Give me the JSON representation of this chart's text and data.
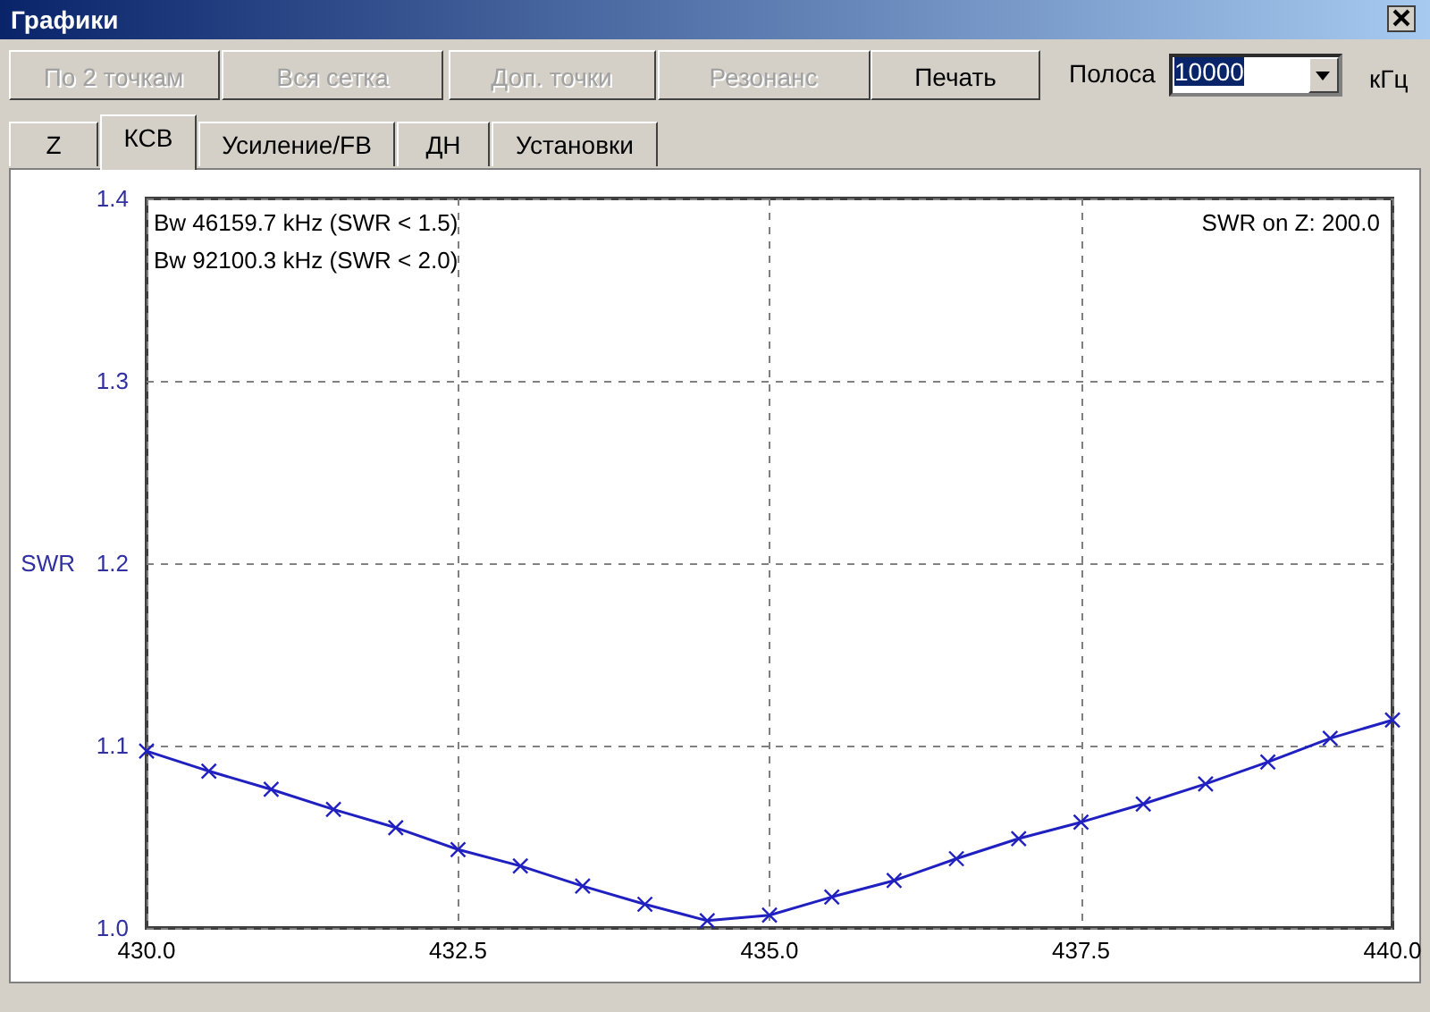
{
  "chart_data": {
    "type": "line",
    "title": "Графики",
    "ylabel": "SWR",
    "annotations": [
      "Bw 46159.7 kHz (SWR < 1.5)",
      "Bw 92100.3 kHz (SWR < 2.0)",
      "SWR on Z: 200.0",
      "По 2 точкам",
      "Вся сетка",
      "Доп. точки",
      "Резонанс",
      "Печать",
      "Полоса",
      "10000",
      "кГц",
      "Z",
      "КСВ",
      "Усиление/FB",
      "ДН",
      "Установки"
    ],
    "x": [
      430.0,
      430.5,
      431.0,
      431.5,
      432.0,
      432.5,
      433.0,
      433.5,
      434.0,
      434.5,
      435.0,
      435.5,
      436.0,
      436.5,
      437.0,
      437.5,
      438.0,
      438.5,
      439.0,
      439.5,
      440.0
    ],
    "series": [
      {
        "color": "#2020c0",
        "values": [
          1.097,
          1.086,
          1.076,
          1.065,
          1.055,
          1.043,
          1.034,
          1.023,
          1.013,
          1.004,
          1.007,
          1.017,
          1.026,
          1.038,
          1.049,
          1.058,
          1.068,
          1.079,
          1.091,
          1.104,
          1.114
        ]
      }
    ],
    "xlim": [
      430.0,
      440.0
    ],
    "xticks": [
      {
        "value": 430,
        "label": "430.0"
      },
      {
        "value": 432.5,
        "label": "432.5"
      },
      {
        "value": 435,
        "label": "435.0"
      },
      {
        "value": 437.5,
        "label": "437.5"
      },
      {
        "value": 440,
        "label": "440.0"
      }
    ],
    "ylim": [
      1.0,
      1.4
    ],
    "yticks": [
      {
        "value": 1.0,
        "label": "1.0"
      },
      {
        "value": 1.1,
        "label": "1.1"
      },
      {
        "value": 1.2,
        "label": "1.2"
      },
      {
        "value": 1.3,
        "label": "1.3"
      },
      {
        "value": 1.4,
        "label": "1.4"
      }
    ],
    "grid": true,
    "marker": "cross",
    "line_style": "solid"
  }
}
